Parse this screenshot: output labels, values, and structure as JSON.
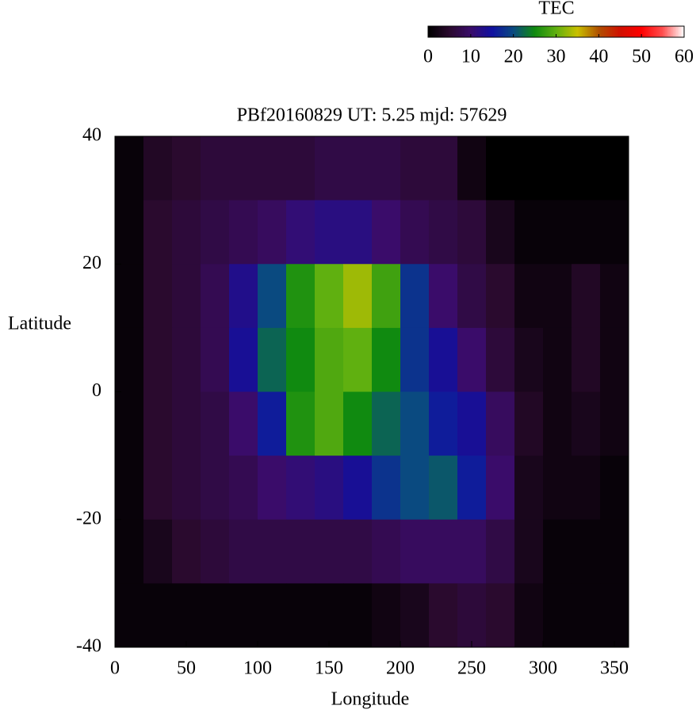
{
  "chart_data": {
    "type": "heatmap",
    "title": "PBf20160829  UT: 5.25  mjd: 57629",
    "xlabel": "Longitude",
    "ylabel": "Latitude",
    "colorbar_label": "TEC",
    "x": [
      10,
      30,
      50,
      70,
      90,
      110,
      130,
      150,
      170,
      190,
      210,
      230,
      250,
      270,
      290,
      310,
      330,
      350
    ],
    "y": [
      35,
      25,
      15,
      5,
      -5,
      -15,
      -25,
      -35
    ],
    "z": [
      [
        1,
        4,
        5,
        6,
        6,
        6,
        6,
        7,
        7,
        7,
        6,
        6,
        2,
        0,
        0,
        0,
        0,
        0
      ],
      [
        1,
        5,
        6,
        7,
        8,
        9,
        11,
        12,
        12,
        10,
        8,
        7,
        6,
        3,
        1,
        1,
        1,
        1
      ],
      [
        1,
        5,
        6,
        8,
        13,
        20,
        26,
        30,
        33,
        28,
        18,
        10,
        7,
        5,
        2,
        2,
        4,
        2
      ],
      [
        1,
        5,
        6,
        8,
        14,
        22,
        25,
        29,
        30,
        25,
        18,
        14,
        10,
        6,
        3,
        2,
        4,
        2
      ],
      [
        1,
        5,
        6,
        7,
        10,
        16,
        26,
        29,
        25,
        22,
        20,
        16,
        14,
        9,
        4,
        2,
        3,
        2
      ],
      [
        1,
        5,
        6,
        7,
        8,
        10,
        11,
        12,
        14,
        18,
        20,
        21,
        16,
        10,
        3,
        2,
        2,
        1
      ],
      [
        1,
        3,
        5,
        6,
        7,
        7,
        7,
        7,
        7,
        8,
        9,
        9,
        9,
        7,
        3,
        1,
        1,
        1
      ],
      [
        1,
        1,
        1,
        1,
        1,
        1,
        1,
        1,
        1,
        2,
        3,
        5,
        6,
        5,
        2,
        1,
        1,
        1
      ]
    ],
    "xlim": [
      0,
      360
    ],
    "xticks": [
      0,
      50,
      100,
      150,
      200,
      250,
      300,
      350
    ],
    "ylim": [
      -40,
      40
    ],
    "yticks": [
      -40,
      -20,
      0,
      20,
      40
    ],
    "clim": [
      0,
      60
    ],
    "cticks": [
      0,
      10,
      20,
      30,
      40,
      50,
      60
    ],
    "colormap": [
      "#000000",
      "#2a0a2e",
      "#3a0c6a",
      "#1010a0",
      "#0a4a80",
      "#108a10",
      "#60b010",
      "#c8c000",
      "#b05000",
      "#d01000",
      "#ff0000",
      "#ff5050",
      "#ffffff"
    ]
  }
}
